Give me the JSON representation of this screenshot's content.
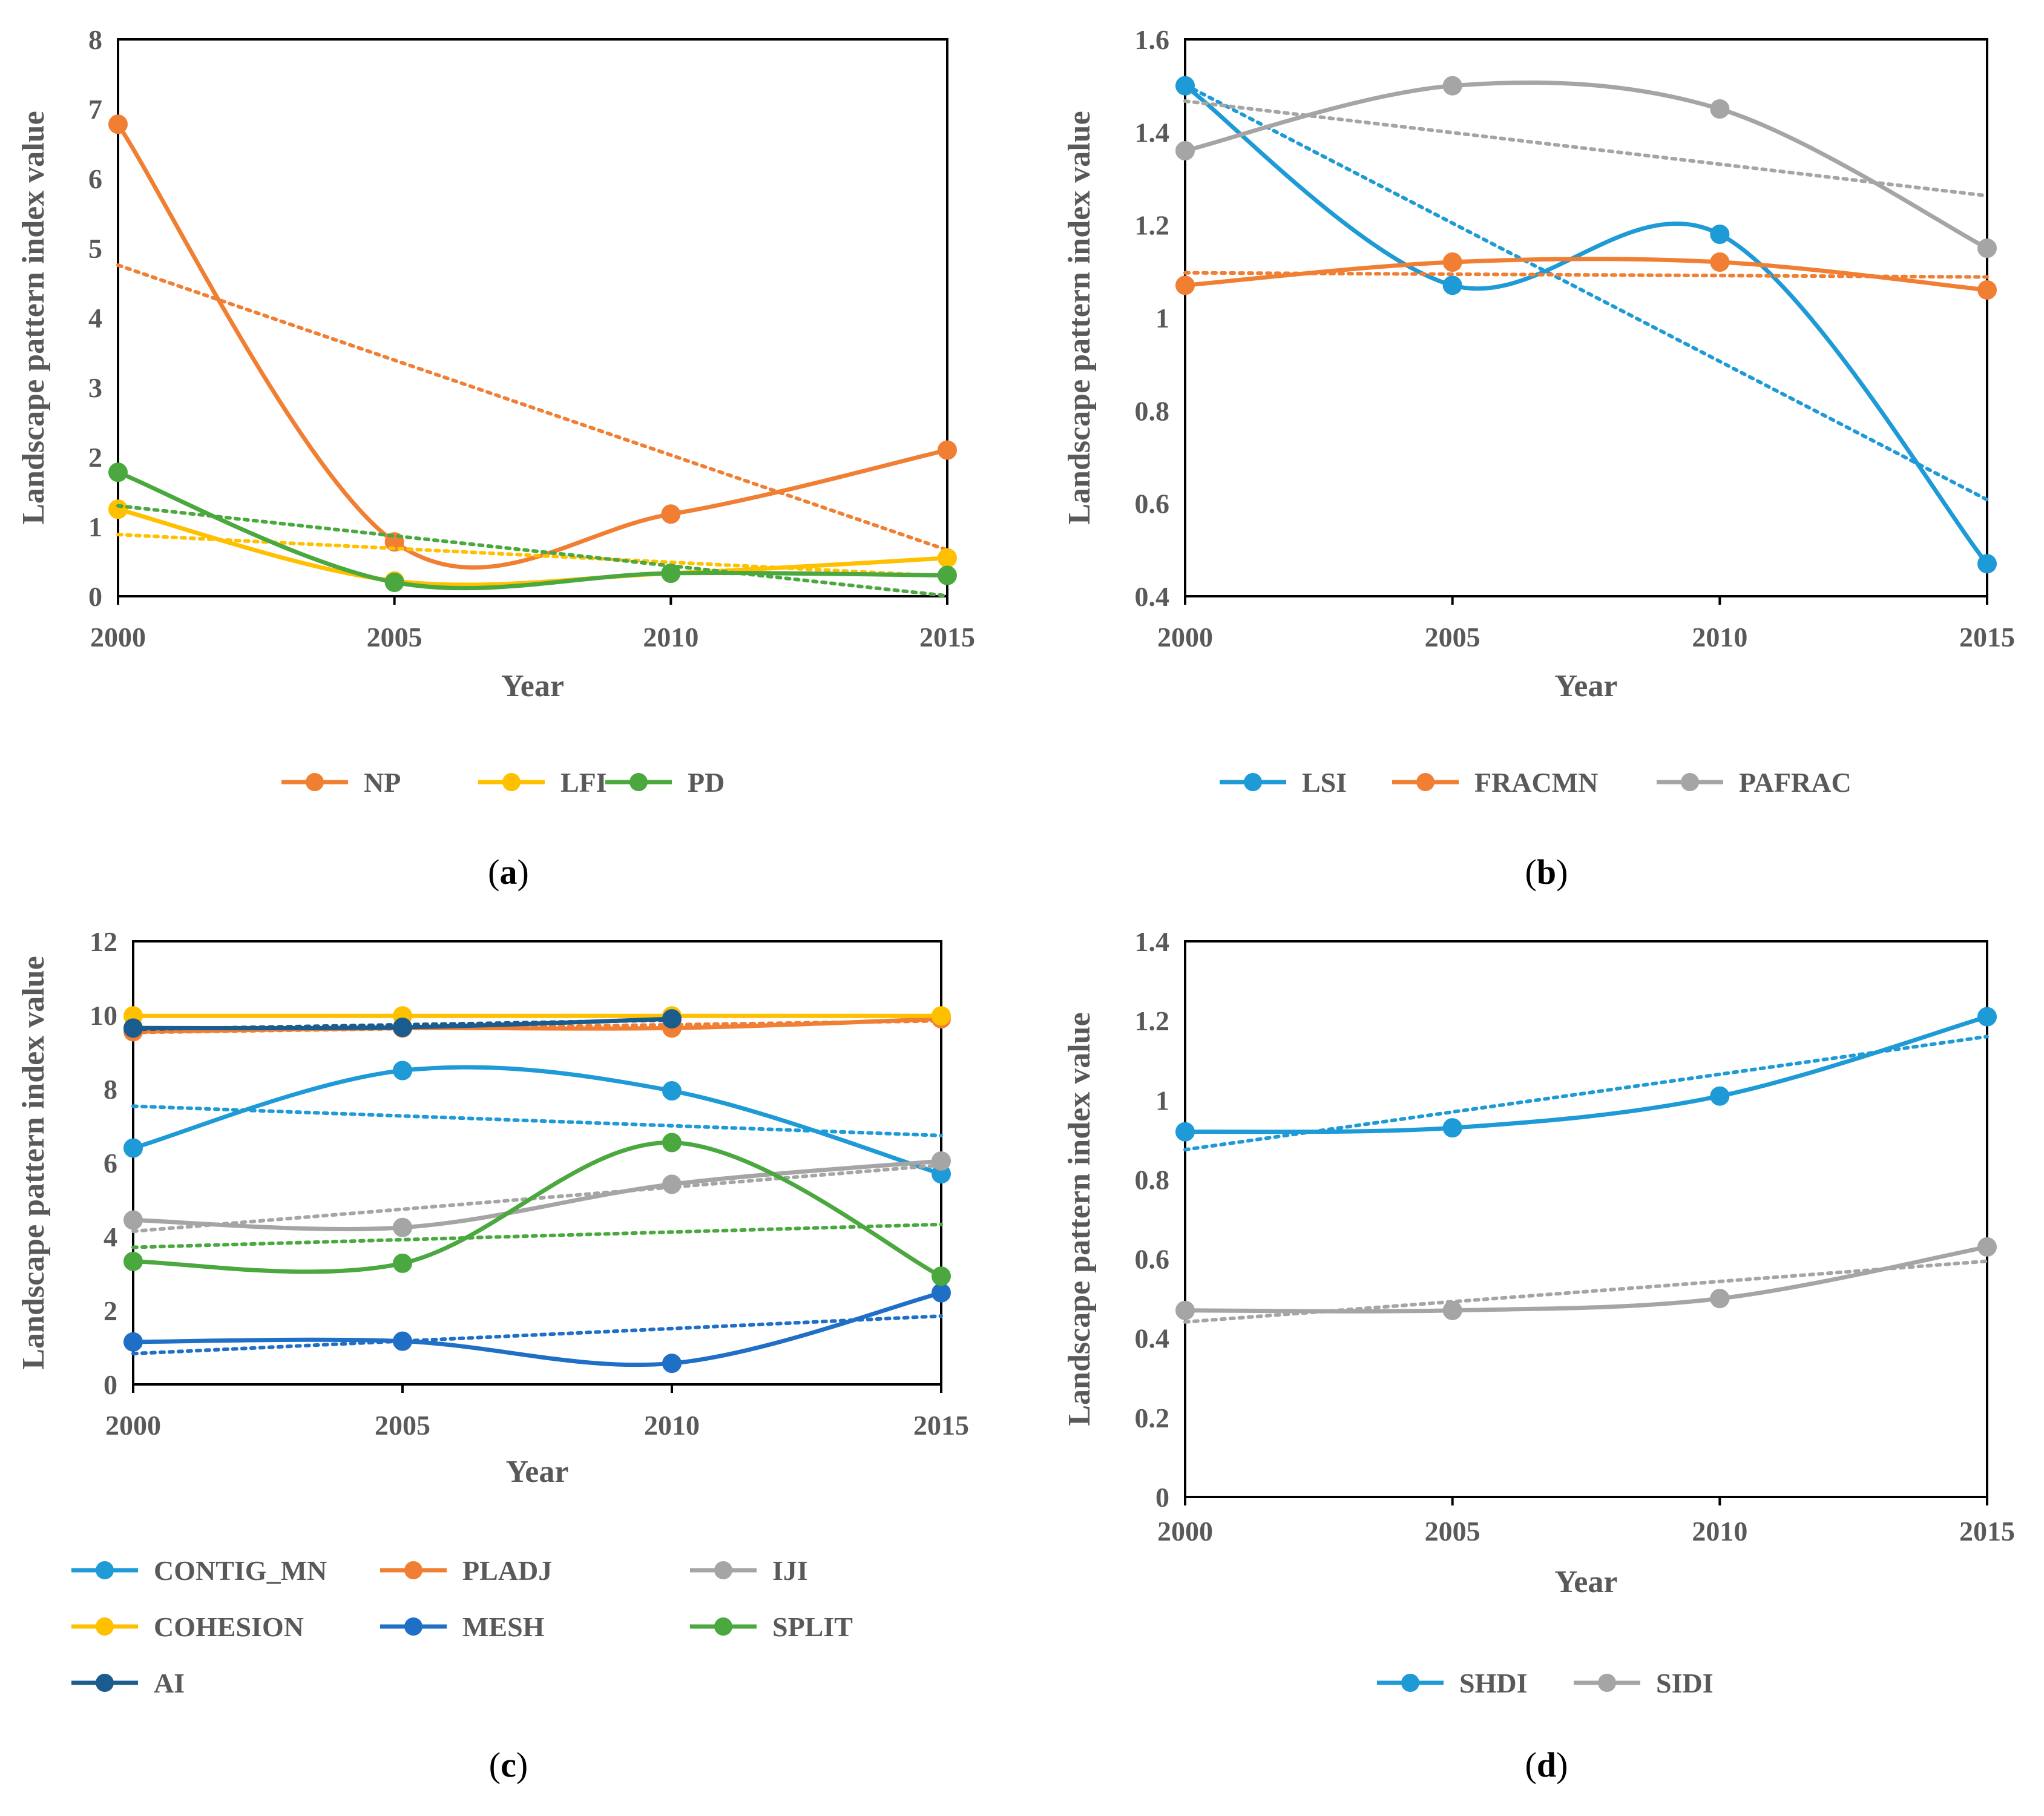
{
  "chart_data": [
    {
      "panel_label": "a",
      "type": "line",
      "xlabel": "Year",
      "ylabel": "Landscape pattern index value",
      "categories": [
        "2000",
        "2005",
        "2010",
        "2015"
      ],
      "ylim": [
        0,
        8
      ],
      "yticks": [
        "0",
        "1",
        "2",
        "3",
        "4",
        "5",
        "6",
        "7",
        "8"
      ],
      "trendlines": true,
      "series": [
        {
          "name": "NP",
          "color": "#F07F34",
          "values": [
            6.78,
            0.78,
            1.18,
            2.1
          ]
        },
        {
          "name": "LFI",
          "color": "#FFC000",
          "values": [
            1.25,
            0.22,
            0.33,
            0.55
          ]
        },
        {
          "name": "PD",
          "color": "#4AA83E",
          "values": [
            1.78,
            0.2,
            0.33,
            0.3
          ]
        }
      ]
    },
    {
      "panel_label": "b",
      "type": "line",
      "xlabel": "Year",
      "ylabel": "Landscape pattern index value",
      "categories": [
        "2000",
        "2005",
        "2010",
        "2015"
      ],
      "ylim": [
        0.4,
        1.6
      ],
      "yticks": [
        "0.4",
        "0.6",
        "0.8",
        "1",
        "1.2",
        "1.4",
        "1.6"
      ],
      "trendlines": true,
      "series": [
        {
          "name": "LSI",
          "color": "#1E9AD6",
          "values": [
            1.5,
            1.07,
            1.18,
            0.47
          ]
        },
        {
          "name": "FRACMN",
          "color": "#F07F34",
          "values": [
            1.07,
            1.12,
            1.12,
            1.06
          ]
        },
        {
          "name": "PAFRAC",
          "color": "#A5A5A5",
          "values": [
            1.36,
            1.5,
            1.45,
            1.15
          ]
        }
      ]
    },
    {
      "panel_label": "c",
      "type": "line",
      "xlabel": "Year",
      "ylabel": "Landscape pattern index value",
      "categories": [
        "2000",
        "2005",
        "2010",
        "2015"
      ],
      "ylim": [
        0,
        12
      ],
      "yticks": [
        "0",
        "2",
        "4",
        "6",
        "8",
        "10",
        "12"
      ],
      "trendlines": true,
      "series": [
        {
          "name": "CONTIG_MN",
          "color": "#1E9AD6",
          "values": [
            6.4,
            8.5,
            7.95,
            5.7
          ]
        },
        {
          "name": "PLADJ",
          "color": "#F07F34",
          "values": [
            9.55,
            9.65,
            9.65,
            9.9
          ]
        },
        {
          "name": "IJI",
          "color": "#A5A5A5",
          "values": [
            4.45,
            4.25,
            5.42,
            6.05
          ]
        },
        {
          "name": "COHESION",
          "color": "#FFC000",
          "values": [
            9.98,
            9.98,
            9.98,
            9.98
          ]
        },
        {
          "name": "MESH",
          "color": "#1F6FC6",
          "values": [
            1.15,
            1.17,
            0.57,
            2.48
          ]
        },
        {
          "name": "SPLIT",
          "color": "#4AA83E",
          "values": [
            3.33,
            3.28,
            6.55,
            2.93
          ]
        },
        {
          "name": "AI",
          "color": "#1B5C8E",
          "values": [
            9.65,
            9.67,
            9.9,
            null
          ]
        }
      ]
    },
    {
      "panel_label": "d",
      "type": "line",
      "xlabel": "Year",
      "ylabel": "Landscape pattern index value",
      "categories": [
        "2000",
        "2005",
        "2010",
        "2015"
      ],
      "ylim": [
        0,
        1.4
      ],
      "yticks": [
        "0",
        "0.2",
        "0.4",
        "0.6",
        "0.8",
        "1",
        "1.2",
        "1.4"
      ],
      "trendlines": true,
      "series": [
        {
          "name": "SHDI",
          "color": "#1E9AD6",
          "values": [
            0.92,
            0.93,
            1.01,
            1.21
          ]
        },
        {
          "name": "SIDI",
          "color": "#A5A5A5",
          "values": [
            0.47,
            0.47,
            0.5,
            0.63
          ]
        }
      ]
    }
  ]
}
